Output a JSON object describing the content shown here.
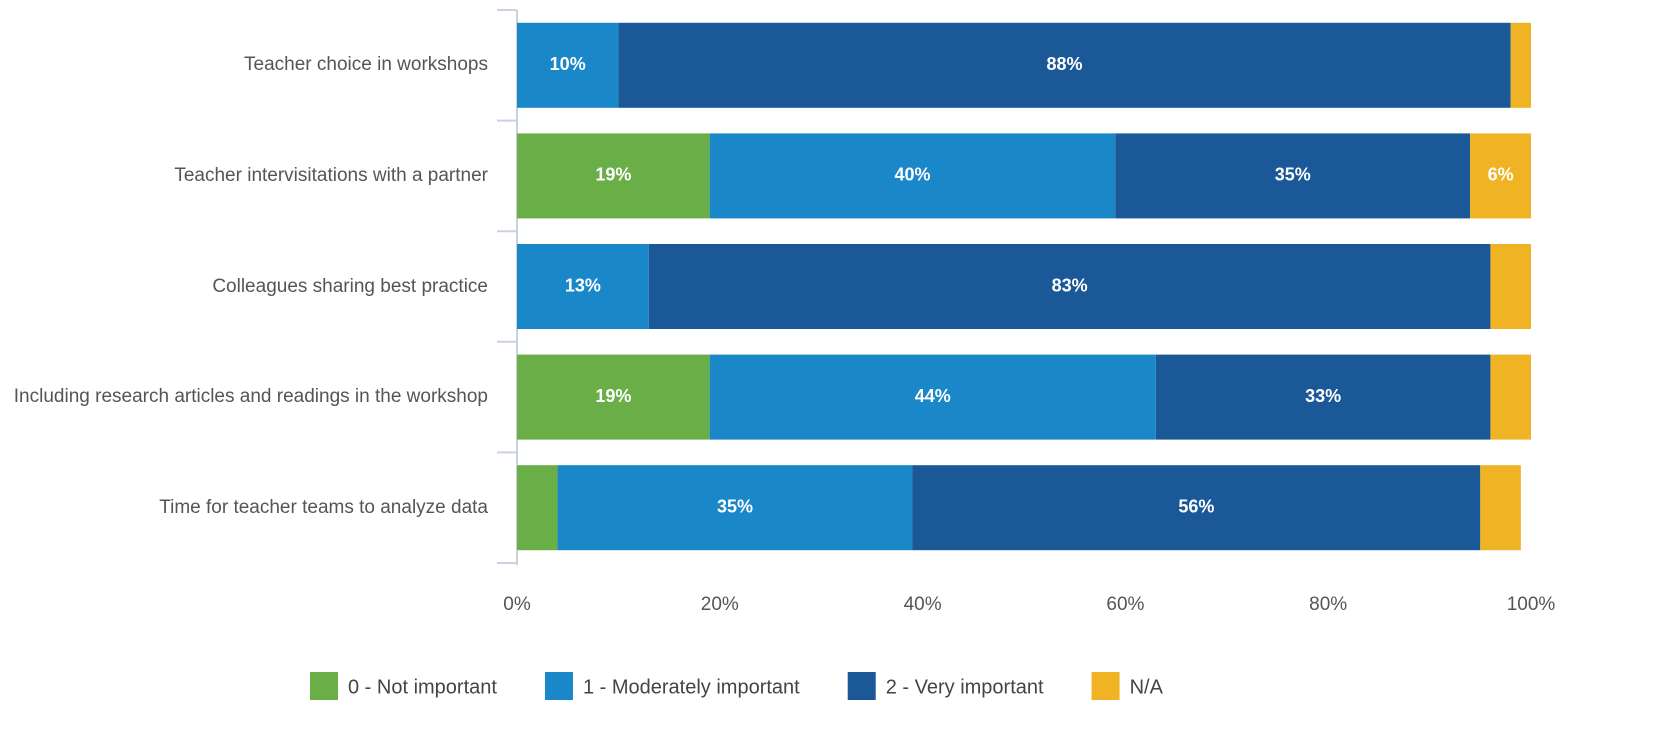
{
  "chart_data": {
    "type": "stacked_barh",
    "categories": [
      "Teacher choice in workshops",
      "Teacher intervisitations with a partner",
      "Colleagues sharing best practice",
      "Including research articles and readings in the workshop",
      "Time for teacher teams to analyze data"
    ],
    "series": [
      {
        "name": "0 - Not important",
        "color": "#6aae47",
        "values": [
          0,
          19,
          0,
          19,
          4
        ],
        "value_labels": [
          null,
          "19%",
          null,
          "19%",
          null
        ]
      },
      {
        "name": "1 - Moderately important",
        "color": "#1a87c9",
        "values": [
          10,
          40,
          13,
          44,
          35
        ],
        "value_labels": [
          "10%",
          "40%",
          "13%",
          "44%",
          "35%"
        ]
      },
      {
        "name": "2 - Very important",
        "color": "#1b5898",
        "values": [
          88,
          35,
          83,
          33,
          56
        ],
        "value_labels": [
          "88%",
          "35%",
          "83%",
          "33%",
          "56%"
        ]
      },
      {
        "name": "N/A",
        "color": "#f0b323",
        "values": [
          2,
          6,
          4,
          4,
          4
        ],
        "value_labels": [
          null,
          "6%",
          null,
          null,
          null
        ]
      }
    ],
    "xlim": [
      0,
      100
    ],
    "xticks": [
      {
        "value": 0,
        "label": "0%"
      },
      {
        "value": 20,
        "label": "20%"
      },
      {
        "value": 40,
        "label": "40%"
      },
      {
        "value": 60,
        "label": "60%"
      },
      {
        "value": 80,
        "label": "80%"
      },
      {
        "value": 100,
        "label": "100%"
      }
    ]
  }
}
